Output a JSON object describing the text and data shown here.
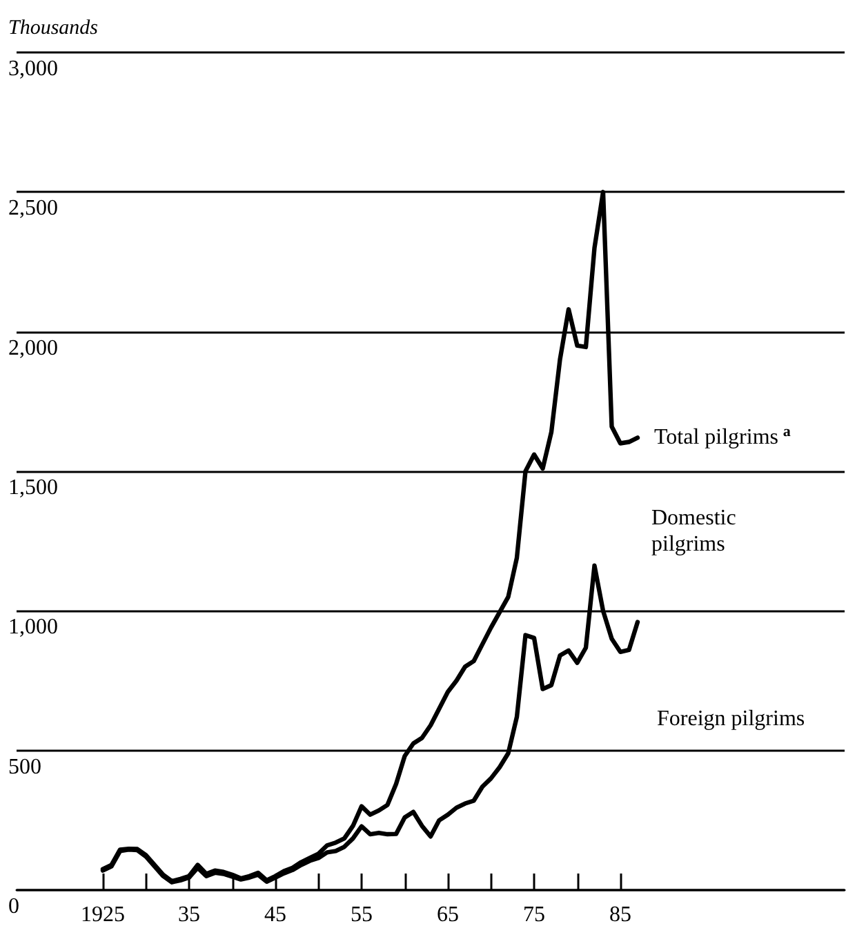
{
  "chart_data": {
    "type": "line",
    "ylabel": "Thousands",
    "x": [
      1925,
      1926,
      1927,
      1928,
      1929,
      1930,
      1931,
      1932,
      1933,
      1934,
      1935,
      1936,
      1937,
      1938,
      1939,
      1940,
      1941,
      1942,
      1943,
      1944,
      1945,
      1946,
      1947,
      1948,
      1949,
      1950,
      1951,
      1952,
      1953,
      1954,
      1955,
      1956,
      1957,
      1958,
      1959,
      1960,
      1961,
      1962,
      1963,
      1964,
      1965,
      1966,
      1967,
      1968,
      1969,
      1970,
      1971,
      1972,
      1973,
      1974,
      1975,
      1976,
      1977,
      1978,
      1979,
      1980,
      1981,
      1982,
      1983,
      1984,
      1985,
      1986,
      1987
    ],
    "series": [
      {
        "name": "Total pilgrims$^{a}$",
        "color": "#000000",
        "values": [
          75,
          90,
          145,
          148,
          147,
          125,
          90,
          55,
          32,
          40,
          50,
          90,
          58,
          70,
          65,
          55,
          42,
          50,
          62,
          35,
          50,
          68,
          80,
          100,
          115,
          130,
          160,
          170,
          185,
          230,
          300,
          270,
          285,
          305,
          380,
          480,
          525,
          545,
          590,
          650,
          710,
          750,
          800,
          820,
          880,
          940,
          995,
          1050,
          1190,
          1500,
          1560,
          1510,
          1640,
          1900,
          2080,
          1950,
          1945,
          2300,
          2500,
          1660,
          1600,
          1605,
          1620
        ]
      },
      {
        "name": "Foreign pilgrims",
        "color": "#000000",
        "values": [
          70,
          85,
          140,
          145,
          143,
          120,
          85,
          50,
          28,
          35,
          45,
          80,
          50,
          62,
          58,
          48,
          38,
          45,
          55,
          30,
          45,
          60,
          72,
          90,
          105,
          115,
          135,
          140,
          155,
          185,
          228,
          200,
          205,
          200,
          201,
          260,
          280,
          230,
          192,
          250,
          270,
          295,
          310,
          320,
          370,
          400,
          440,
          490,
          620,
          913,
          903,
          720,
          734,
          840,
          858,
          814,
          868,
          1162,
          1000,
          900,
          853,
          860,
          960
        ]
      }
    ],
    "annotations": [
      "Domestic pilgrims"
    ],
    "xlim": [
      1915,
      2011
    ],
    "xticks": [
      {
        "value": 1925,
        "label": "1925"
      },
      {
        "value": 1930,
        "label": null
      },
      {
        "value": 1935,
        "label": "35"
      },
      {
        "value": 1940,
        "label": null
      },
      {
        "value": 1945,
        "label": "45"
      },
      {
        "value": 1950,
        "label": null
      },
      {
        "value": 1955,
        "label": "55"
      },
      {
        "value": 1960,
        "label": null
      },
      {
        "value": 1965,
        "label": "65"
      },
      {
        "value": 1970,
        "label": null
      },
      {
        "value": 1975,
        "label": "75"
      },
      {
        "value": 1980,
        "label": null
      },
      {
        "value": 1985,
        "label": "85"
      }
    ],
    "ylim": [
      0,
      3000
    ],
    "yticks": [
      {
        "value": 0,
        "label": "0"
      },
      {
        "value": 500,
        "label": "500"
      },
      {
        "value": 1000,
        "label": "1,000"
      },
      {
        "value": 1500,
        "label": "1,500"
      },
      {
        "value": 2000,
        "label": "2,000"
      },
      {
        "value": 2500,
        "label": "2,500"
      },
      {
        "value": 3000,
        "label": "3,000"
      }
    ],
    "grid": "y",
    "legend": false,
    "marker": "none",
    "line_style": "solid"
  }
}
